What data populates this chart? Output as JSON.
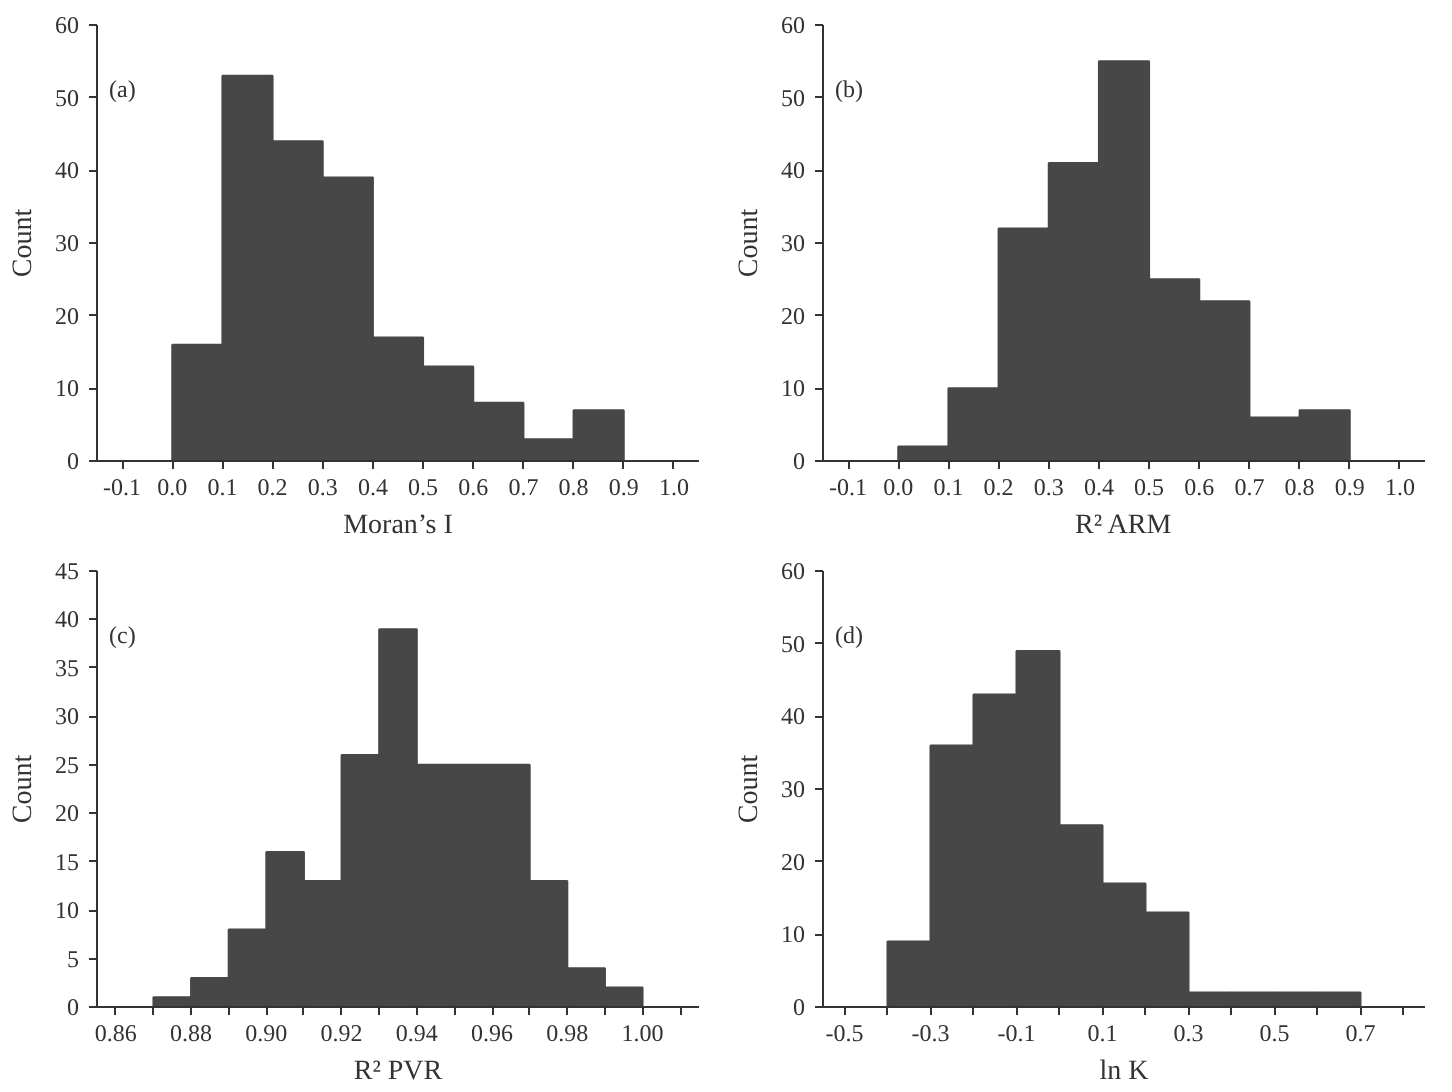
{
  "chart_data": [
    {
      "type": "histogram",
      "xlabel": "Moran’s I",
      "ylabel": "Count",
      "annotations": [
        "(a)"
      ],
      "color": "#474747",
      "grid": false,
      "bins": [
        0.0,
        0.1,
        0.2,
        0.3,
        0.4,
        0.5,
        0.6,
        0.7,
        0.8,
        0.9
      ],
      "values": [
        16,
        53,
        44,
        39,
        17,
        13,
        8,
        3,
        7
      ],
      "xlim": [
        -0.15,
        1.05
      ],
      "ylim": [
        0,
        60
      ],
      "xticks": [
        {
          "value": -0.1,
          "label": "-0.1"
        },
        {
          "value": 0,
          "label": "0.0"
        },
        0.1,
        0.2,
        0.3,
        0.4,
        0.5,
        0.6,
        0.7,
        0.8,
        0.9,
        {
          "value": 1,
          "label": "1.0"
        }
      ],
      "yticks": [
        0,
        10,
        20,
        30,
        40,
        50,
        60
      ]
    },
    {
      "type": "histogram",
      "xlabel": "R² ARM",
      "ylabel": "Count",
      "annotations": [
        "(b)"
      ],
      "color": "#474747",
      "grid": false,
      "bins": [
        0.0,
        0.1,
        0.2,
        0.3,
        0.4,
        0.5,
        0.6,
        0.7,
        0.8,
        0.9
      ],
      "values": [
        2,
        10,
        32,
        41,
        55,
        25,
        22,
        6,
        7
      ],
      "xlim": [
        -0.15,
        1.05
      ],
      "ylim": [
        0,
        60
      ],
      "xticks": [
        {
          "value": -0.1,
          "label": "-0.1"
        },
        {
          "value": 0,
          "label": "0.0"
        },
        0.1,
        0.2,
        0.3,
        0.4,
        0.5,
        0.6,
        0.7,
        0.8,
        0.9,
        {
          "value": 1,
          "label": "1.0"
        }
      ],
      "yticks": [
        0,
        10,
        20,
        30,
        40,
        50,
        60
      ]
    },
    {
      "type": "histogram",
      "xlabel": "R² PVR",
      "ylabel": "Count",
      "annotations": [
        "(c)"
      ],
      "color": "#474747",
      "grid": false,
      "bins": [
        0.87,
        0.88,
        0.89,
        0.9,
        0.91,
        0.92,
        0.93,
        0.94,
        0.95,
        0.96,
        0.97,
        0.98,
        0.99,
        1.0
      ],
      "values": [
        1,
        3,
        8,
        16,
        13,
        26,
        39,
        25,
        25,
        25,
        13,
        4,
        2
      ],
      "xlim": [
        0.855,
        1.015
      ],
      "ylim": [
        0,
        45
      ],
      "xticks": [
        0.86,
        {
          "value": 0.87,
          "label": null
        },
        0.88,
        {
          "value": 0.89,
          "label": null
        },
        {
          "value": 0.9,
          "label": "0.90"
        },
        {
          "value": 0.91,
          "label": null
        },
        0.92,
        {
          "value": 0.93,
          "label": null
        },
        0.94,
        {
          "value": 0.95,
          "label": null
        },
        0.96,
        {
          "value": 0.97,
          "label": null
        },
        0.98,
        {
          "value": 0.99,
          "label": null
        },
        {
          "value": 1,
          "label": "1.00"
        },
        {
          "value": 1.01,
          "label": null
        }
      ],
      "yticks": [
        0,
        5,
        10,
        15,
        20,
        25,
        30,
        35,
        40,
        45
      ]
    },
    {
      "type": "histogram",
      "xlabel": "ln K",
      "ylabel": "Count",
      "annotations": [
        "(d)"
      ],
      "color": "#474747",
      "grid": false,
      "bins": [
        -0.4,
        -0.3,
        -0.2,
        -0.1,
        0.0,
        0.1,
        0.2,
        0.3,
        0.4,
        0.5,
        0.6,
        0.7
      ],
      "values": [
        9,
        36,
        43,
        49,
        25,
        17,
        13,
        2,
        2,
        2,
        2
      ],
      "xlim": [
        -0.55,
        0.85
      ],
      "ylim": [
        0,
        60
      ],
      "xticks": [
        -0.5,
        {
          "value": -0.4,
          "label": null
        },
        -0.3,
        {
          "value": -0.2,
          "label": null
        },
        -0.1,
        {
          "value": 0,
          "label": null
        },
        0.1,
        {
          "value": 0.2,
          "label": null
        },
        0.3,
        {
          "value": 0.4,
          "label": null
        },
        0.5,
        {
          "value": 0.6,
          "label": null
        },
        0.7,
        {
          "value": 0.8,
          "label": null
        }
      ],
      "yticks": [
        0,
        10,
        20,
        30,
        40,
        50,
        60
      ]
    }
  ]
}
